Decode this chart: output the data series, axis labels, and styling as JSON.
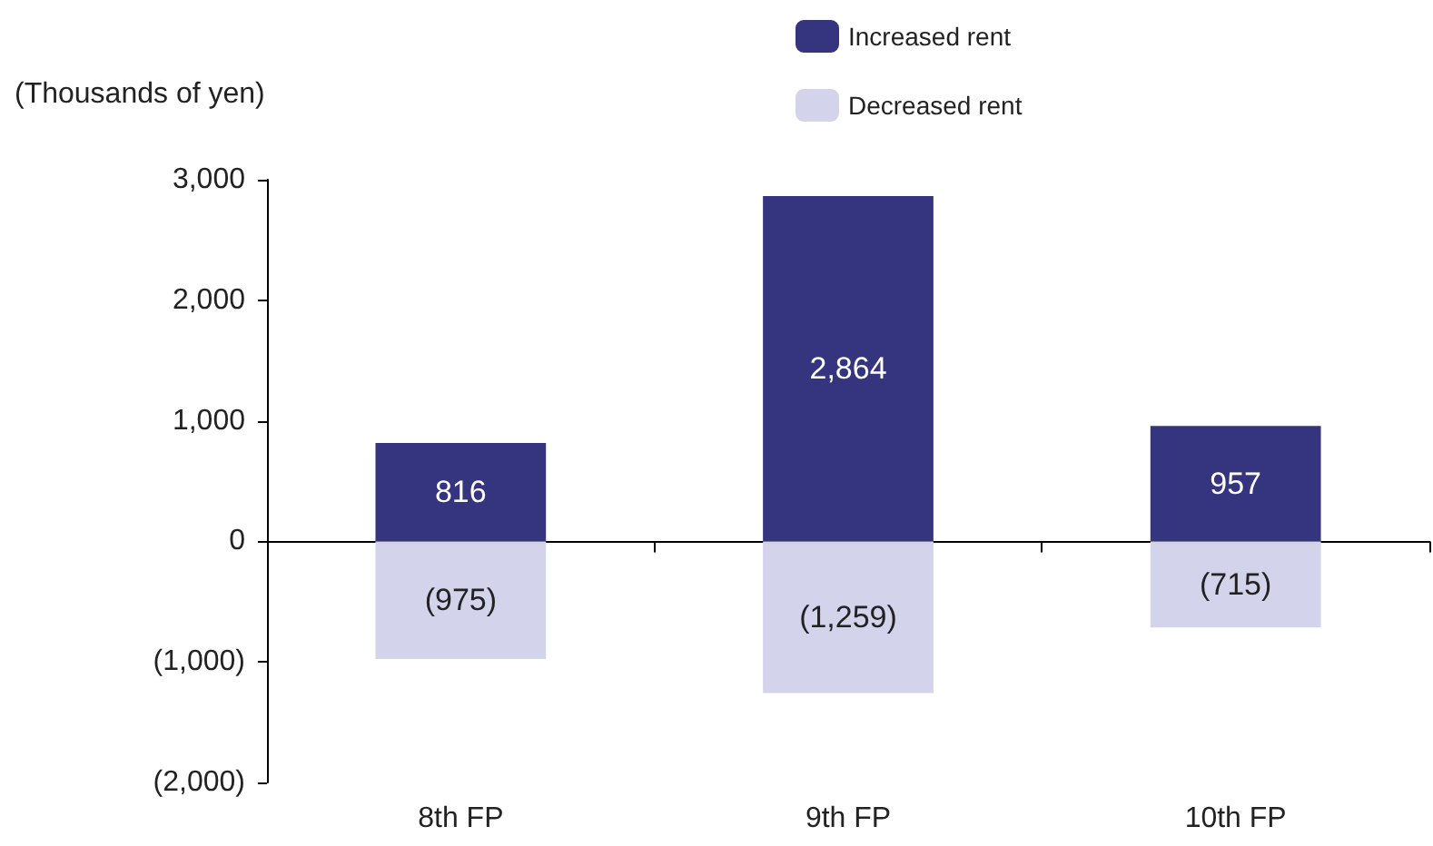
{
  "chart_data": {
    "type": "bar",
    "stacked": true,
    "ylabel": "(Thousands of yen)",
    "categories": [
      "8th FP",
      "9th FP",
      "10th FP"
    ],
    "series": [
      {
        "name": "Increased rent",
        "color": "#35357f",
        "values": [
          816,
          2864,
          957
        ],
        "value_labels": [
          "816",
          "2,864",
          "957"
        ]
      },
      {
        "name": "Decreased rent",
        "color": "#d3d3ec",
        "values": [
          -975,
          -1259,
          -715
        ],
        "value_labels": [
          "(975)",
          "(1,259)",
          "(715)"
        ]
      }
    ],
    "ylim": [
      -2000,
      3000
    ],
    "yticks": [
      {
        "value": -2000,
        "label": "(2,000)"
      },
      {
        "value": -1000,
        "label": "(1,000)"
      },
      {
        "value": 0,
        "label": "0"
      },
      {
        "value": 1000,
        "label": "1,000"
      },
      {
        "value": 2000,
        "label": "2,000"
      },
      {
        "value": 3000,
        "label": "3,000"
      }
    ],
    "legend": "top right"
  }
}
